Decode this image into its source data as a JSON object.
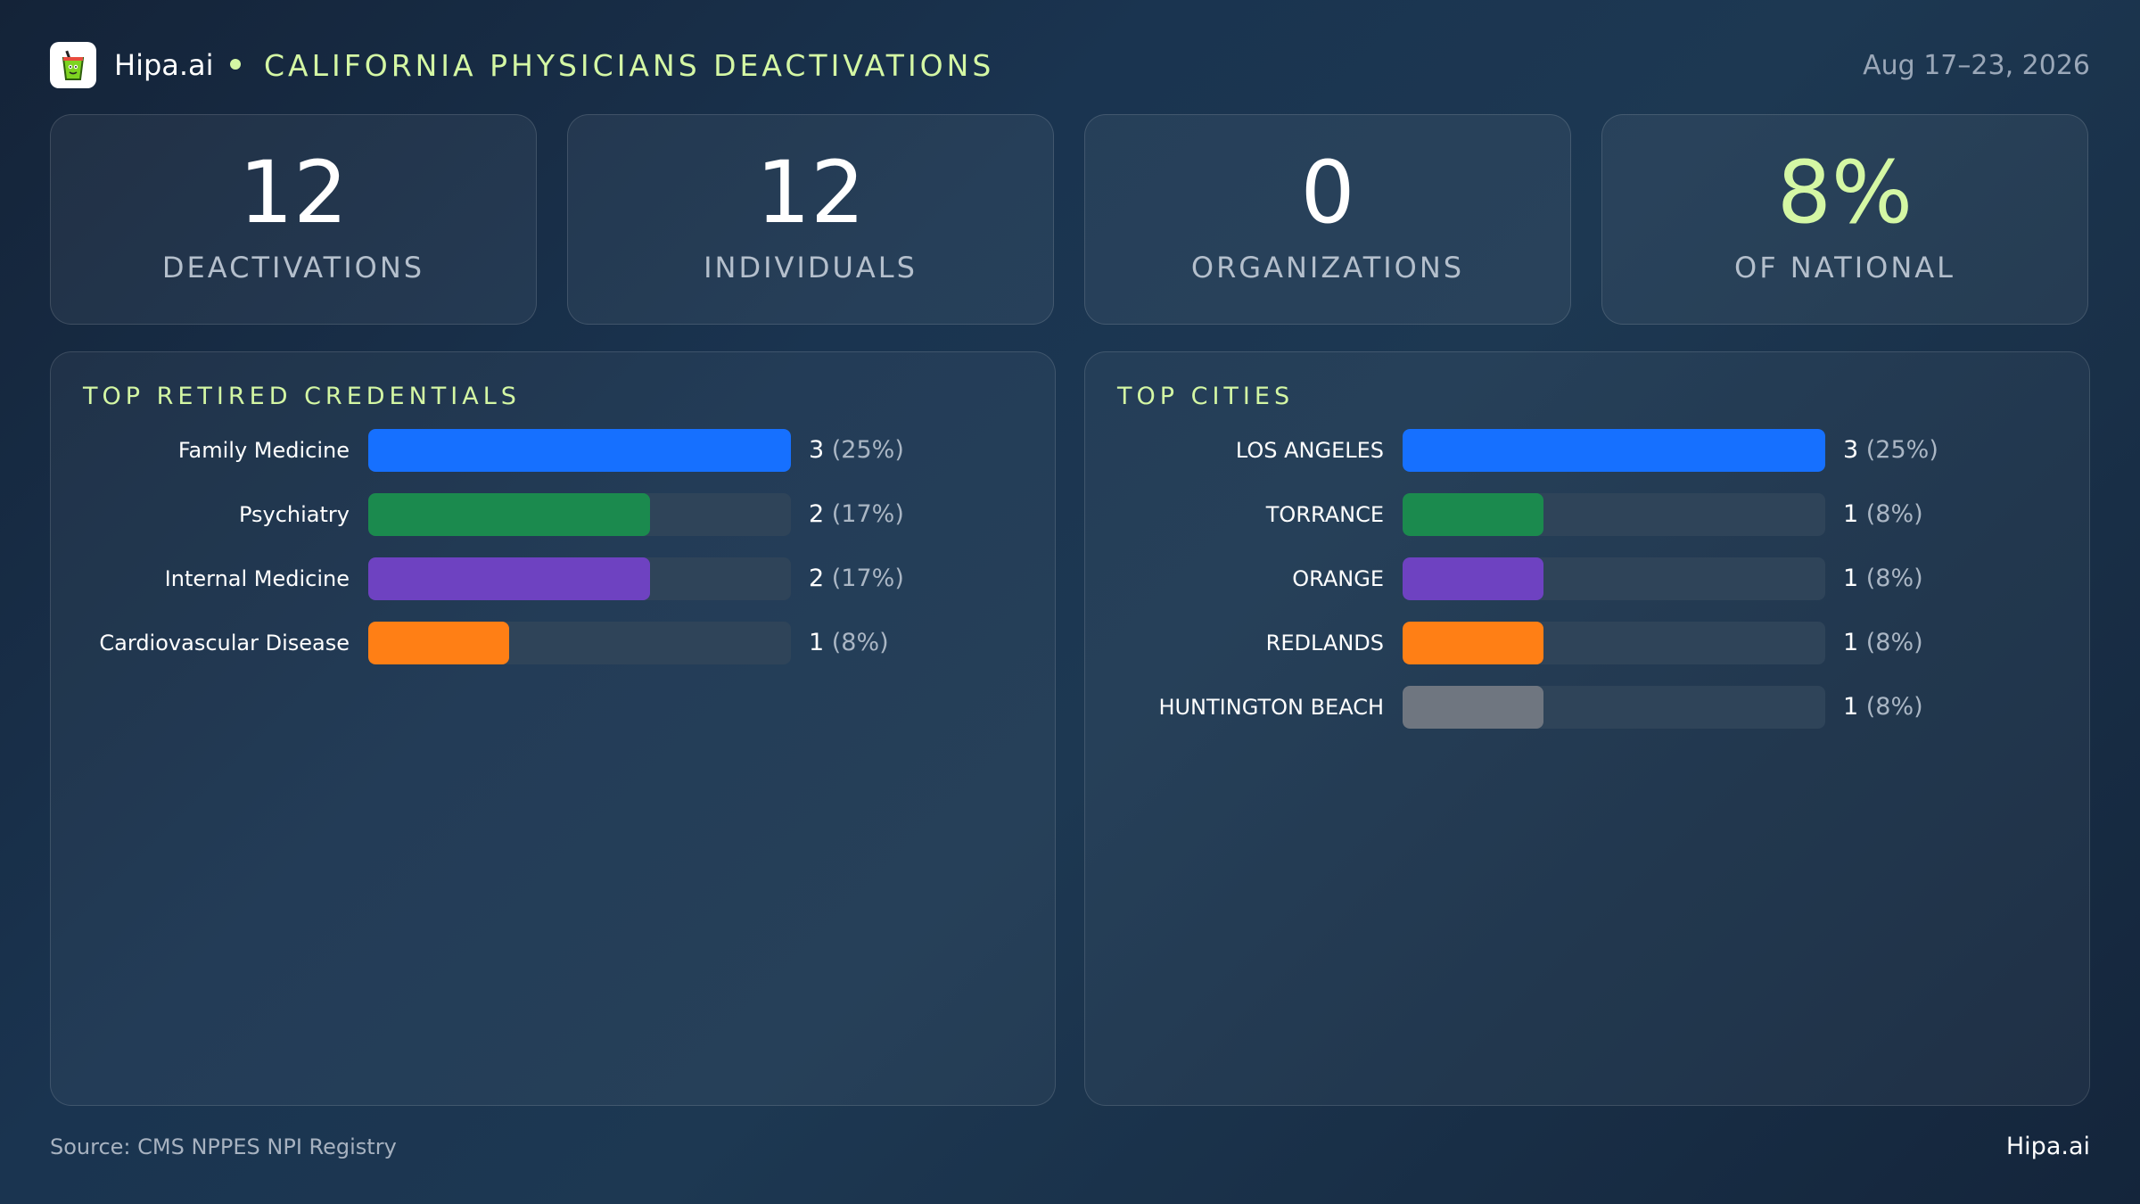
{
  "header": {
    "brand": "Hipa.ai",
    "title": "CALIFORNIA PHYSICIANS DEACTIVATIONS",
    "date": "Aug 17–23, 2026",
    "logo_icon": "drink-cup-icon",
    "accent_color": "#d4f7a4"
  },
  "kpis": [
    {
      "value": "12",
      "label": "DEACTIVATIONS",
      "color": "#ffffff"
    },
    {
      "value": "12",
      "label": "INDIVIDUALS",
      "color": "#ffffff"
    },
    {
      "value": "0",
      "label": "ORGANIZATIONS",
      "color": "#ffffff"
    },
    {
      "value": "8%",
      "label": "OF NATIONAL",
      "color": "#d4f7a4"
    }
  ],
  "chart_data": [
    {
      "type": "bar",
      "orientation": "horizontal",
      "title": "TOP RETIRED CREDENTIALS",
      "categories": [
        "Family Medicine",
        "Psychiatry",
        "Internal Medicine",
        "Cardiovascular Disease"
      ],
      "values": [
        3,
        2,
        2,
        1
      ],
      "value_labels": [
        "3",
        "2",
        "2",
        "1"
      ],
      "percent_labels": [
        "(25%)",
        "(17%)",
        "(17%)",
        "(8%)"
      ],
      "colors": [
        "#1670ff",
        "#1b8a4e",
        "#6e42c1",
        "#ff7f15"
      ],
      "xlim": [
        0,
        3
      ]
    },
    {
      "type": "bar",
      "orientation": "horizontal",
      "title": "TOP CITIES",
      "categories": [
        "LOS ANGELES",
        "TORRANCE",
        "ORANGE",
        "REDLANDS",
        "HUNTINGTON BEACH"
      ],
      "values": [
        3,
        1,
        1,
        1,
        1
      ],
      "value_labels": [
        "3",
        "1",
        "1",
        "1",
        "1"
      ],
      "percent_labels": [
        "(25%)",
        "(8%)",
        "(8%)",
        "(8%)",
        "(8%)"
      ],
      "colors": [
        "#1670ff",
        "#1b8a4e",
        "#6e42c1",
        "#ff7f15",
        "#6f7680"
      ],
      "xlim": [
        0,
        3
      ]
    }
  ],
  "footer": {
    "source": "Source: CMS NPPES NPI Registry",
    "brand": "Hipa.ai"
  }
}
